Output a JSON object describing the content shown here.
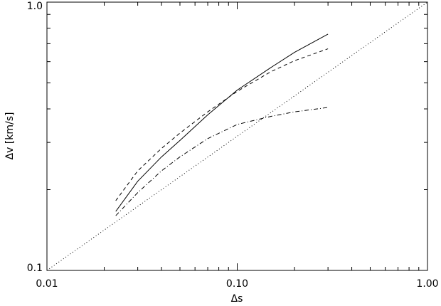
{
  "chart_data": {
    "type": "line",
    "xlabel": "Δs",
    "ylabel": "Δv [km/s]",
    "xscale": "log",
    "yscale": "log",
    "xlim": [
      0.01,
      1
    ],
    "ylim": [
      0.1,
      1
    ],
    "xticks": [
      {
        "value": 0.01,
        "label": "0.01"
      },
      {
        "value": 0.1,
        "label": "0.10"
      },
      {
        "value": 1,
        "label": "1.00"
      }
    ],
    "yticks": [
      0.1,
      {
        "value": 1,
        "label": "1.0"
      }
    ],
    "xminorticks": [
      0.02,
      0.03,
      0.04,
      0.05,
      0.06,
      0.07,
      0.08,
      0.09,
      0.2,
      0.3,
      0.4,
      0.5,
      0.6,
      0.7,
      0.8,
      0.9
    ],
    "yminorticks": [
      0.2,
      0.3,
      0.4,
      0.5,
      0.6,
      0.7,
      0.8,
      0.9
    ],
    "series": [
      {
        "color": "#000000",
        "dash": "solid",
        "x": [
          0.023,
          0.03,
          0.04,
          0.05,
          0.07,
          0.1,
          0.15,
          0.2,
          0.3
        ],
        "values": [
          0.166,
          0.215,
          0.265,
          0.305,
          0.38,
          0.47,
          0.57,
          0.65,
          0.76
        ]
      },
      {
        "color": "#000000",
        "dash": "dashed",
        "x": [
          0.023,
          0.03,
          0.04,
          0.05,
          0.07,
          0.1,
          0.15,
          0.2,
          0.3
        ],
        "values": [
          0.182,
          0.235,
          0.285,
          0.325,
          0.39,
          0.465,
          0.55,
          0.605,
          0.67
        ]
      },
      {
        "color": "#000000",
        "dash": "dashdot",
        "x": [
          0.023,
          0.03,
          0.04,
          0.05,
          0.07,
          0.1,
          0.15,
          0.2,
          0.3
        ],
        "values": [
          0.16,
          0.195,
          0.235,
          0.265,
          0.31,
          0.35,
          0.375,
          0.39,
          0.405
        ]
      },
      {
        "color": "#000000",
        "dash": "dotted",
        "x": [
          0.01,
          1
        ],
        "values": [
          0.1,
          1
        ]
      }
    ]
  }
}
